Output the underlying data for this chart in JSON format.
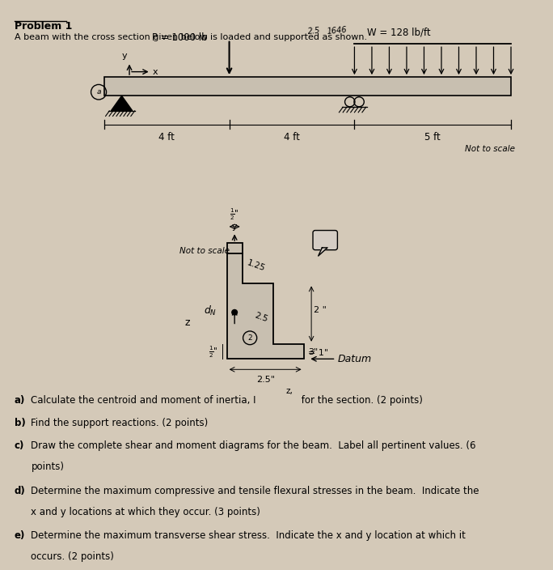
{
  "bg_color": "#d4c9b8",
  "title_bold": "Problem 1",
  "subtitle": "A beam with the cross section given below is loaded and supported as shown.",
  "P_label": "P = 1000 lb",
  "W_label": "W = 128 lb/ft",
  "dim_labels": [
    "4 ft",
    "4 ft",
    "5 ft"
  ],
  "not_to_scale1": "Not to scale",
  "not_to_scale2": "Not to scale",
  "q_a": "Calculate the centroid and moment of inertia, I",
  "q_a2": ", for the section. (2 points)",
  "q_b": "Find the support reactions. (2 points)",
  "q_c": "Draw the complete shear and moment diagrams for the beam.  Label all pertinent values. (6",
  "q_c2": "points)",
  "q_d": "Determine the maximum compressive and tensile flexural stresses in the beam.  Indicate the",
  "q_d2": "x and y locations at which they occur. (3 points)",
  "q_e": "Determine the maximum transverse shear stress.  Indicate the x and y location at which it",
  "q_e2": "occurs. (2 points)"
}
